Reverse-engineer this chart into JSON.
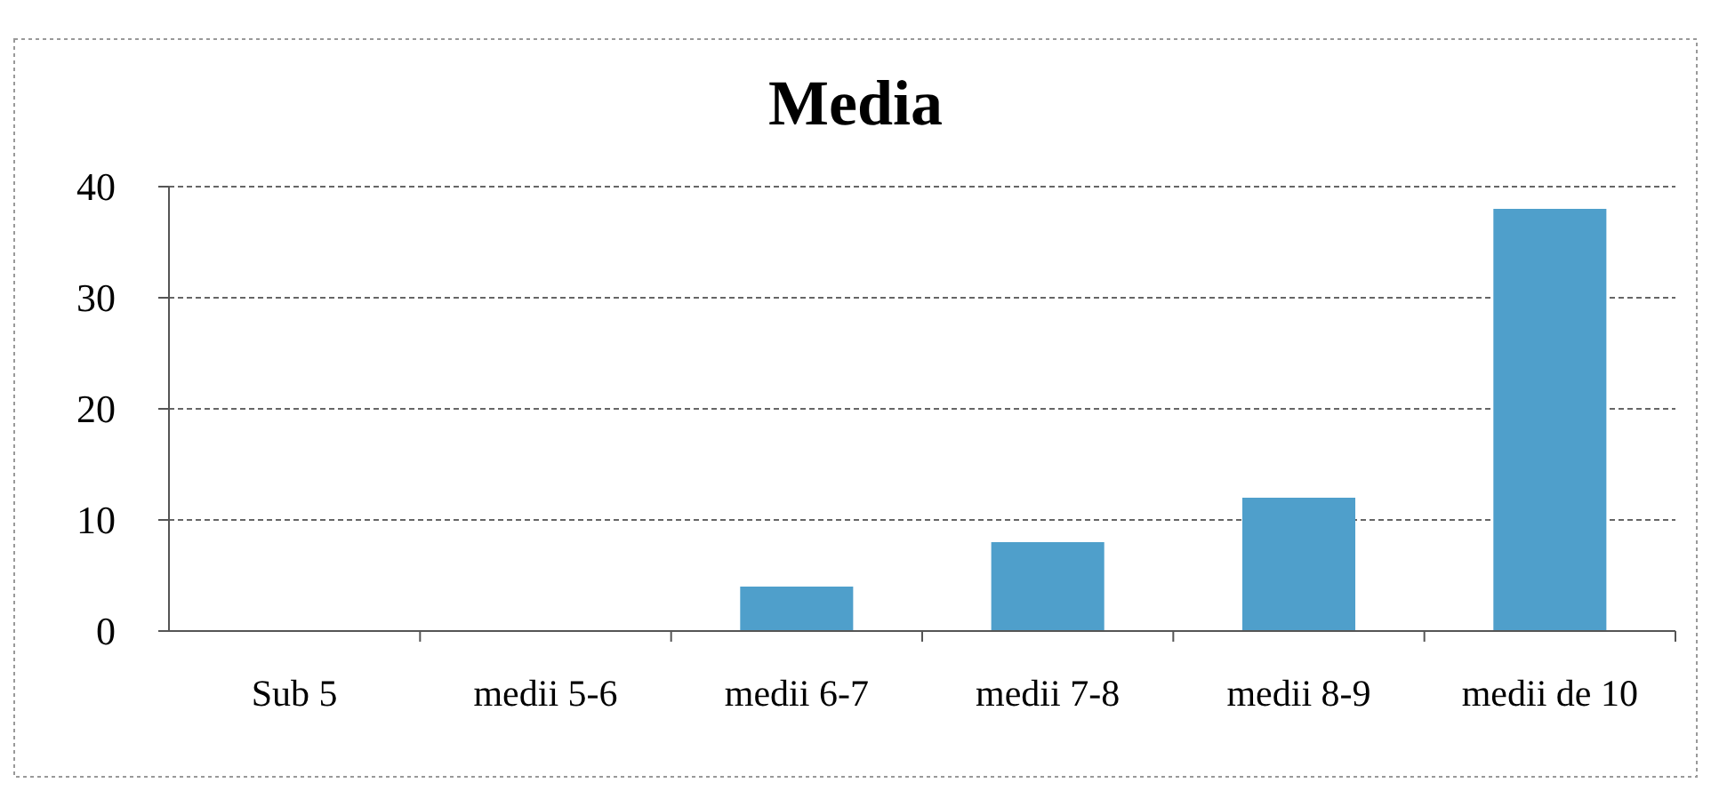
{
  "chart_data": {
    "type": "bar",
    "title": "Media",
    "categories": [
      "Sub 5",
      "medii 5-6",
      "medii 6-7",
      "medii 7-8",
      "medii 8-9",
      "medii de 10"
    ],
    "values": [
      0,
      0,
      4,
      8,
      12,
      38
    ],
    "color": "#4f9fcb",
    "ylim": [
      0,
      40
    ],
    "yticks": [
      0,
      10,
      20,
      30,
      40
    ],
    "grid": "y"
  }
}
